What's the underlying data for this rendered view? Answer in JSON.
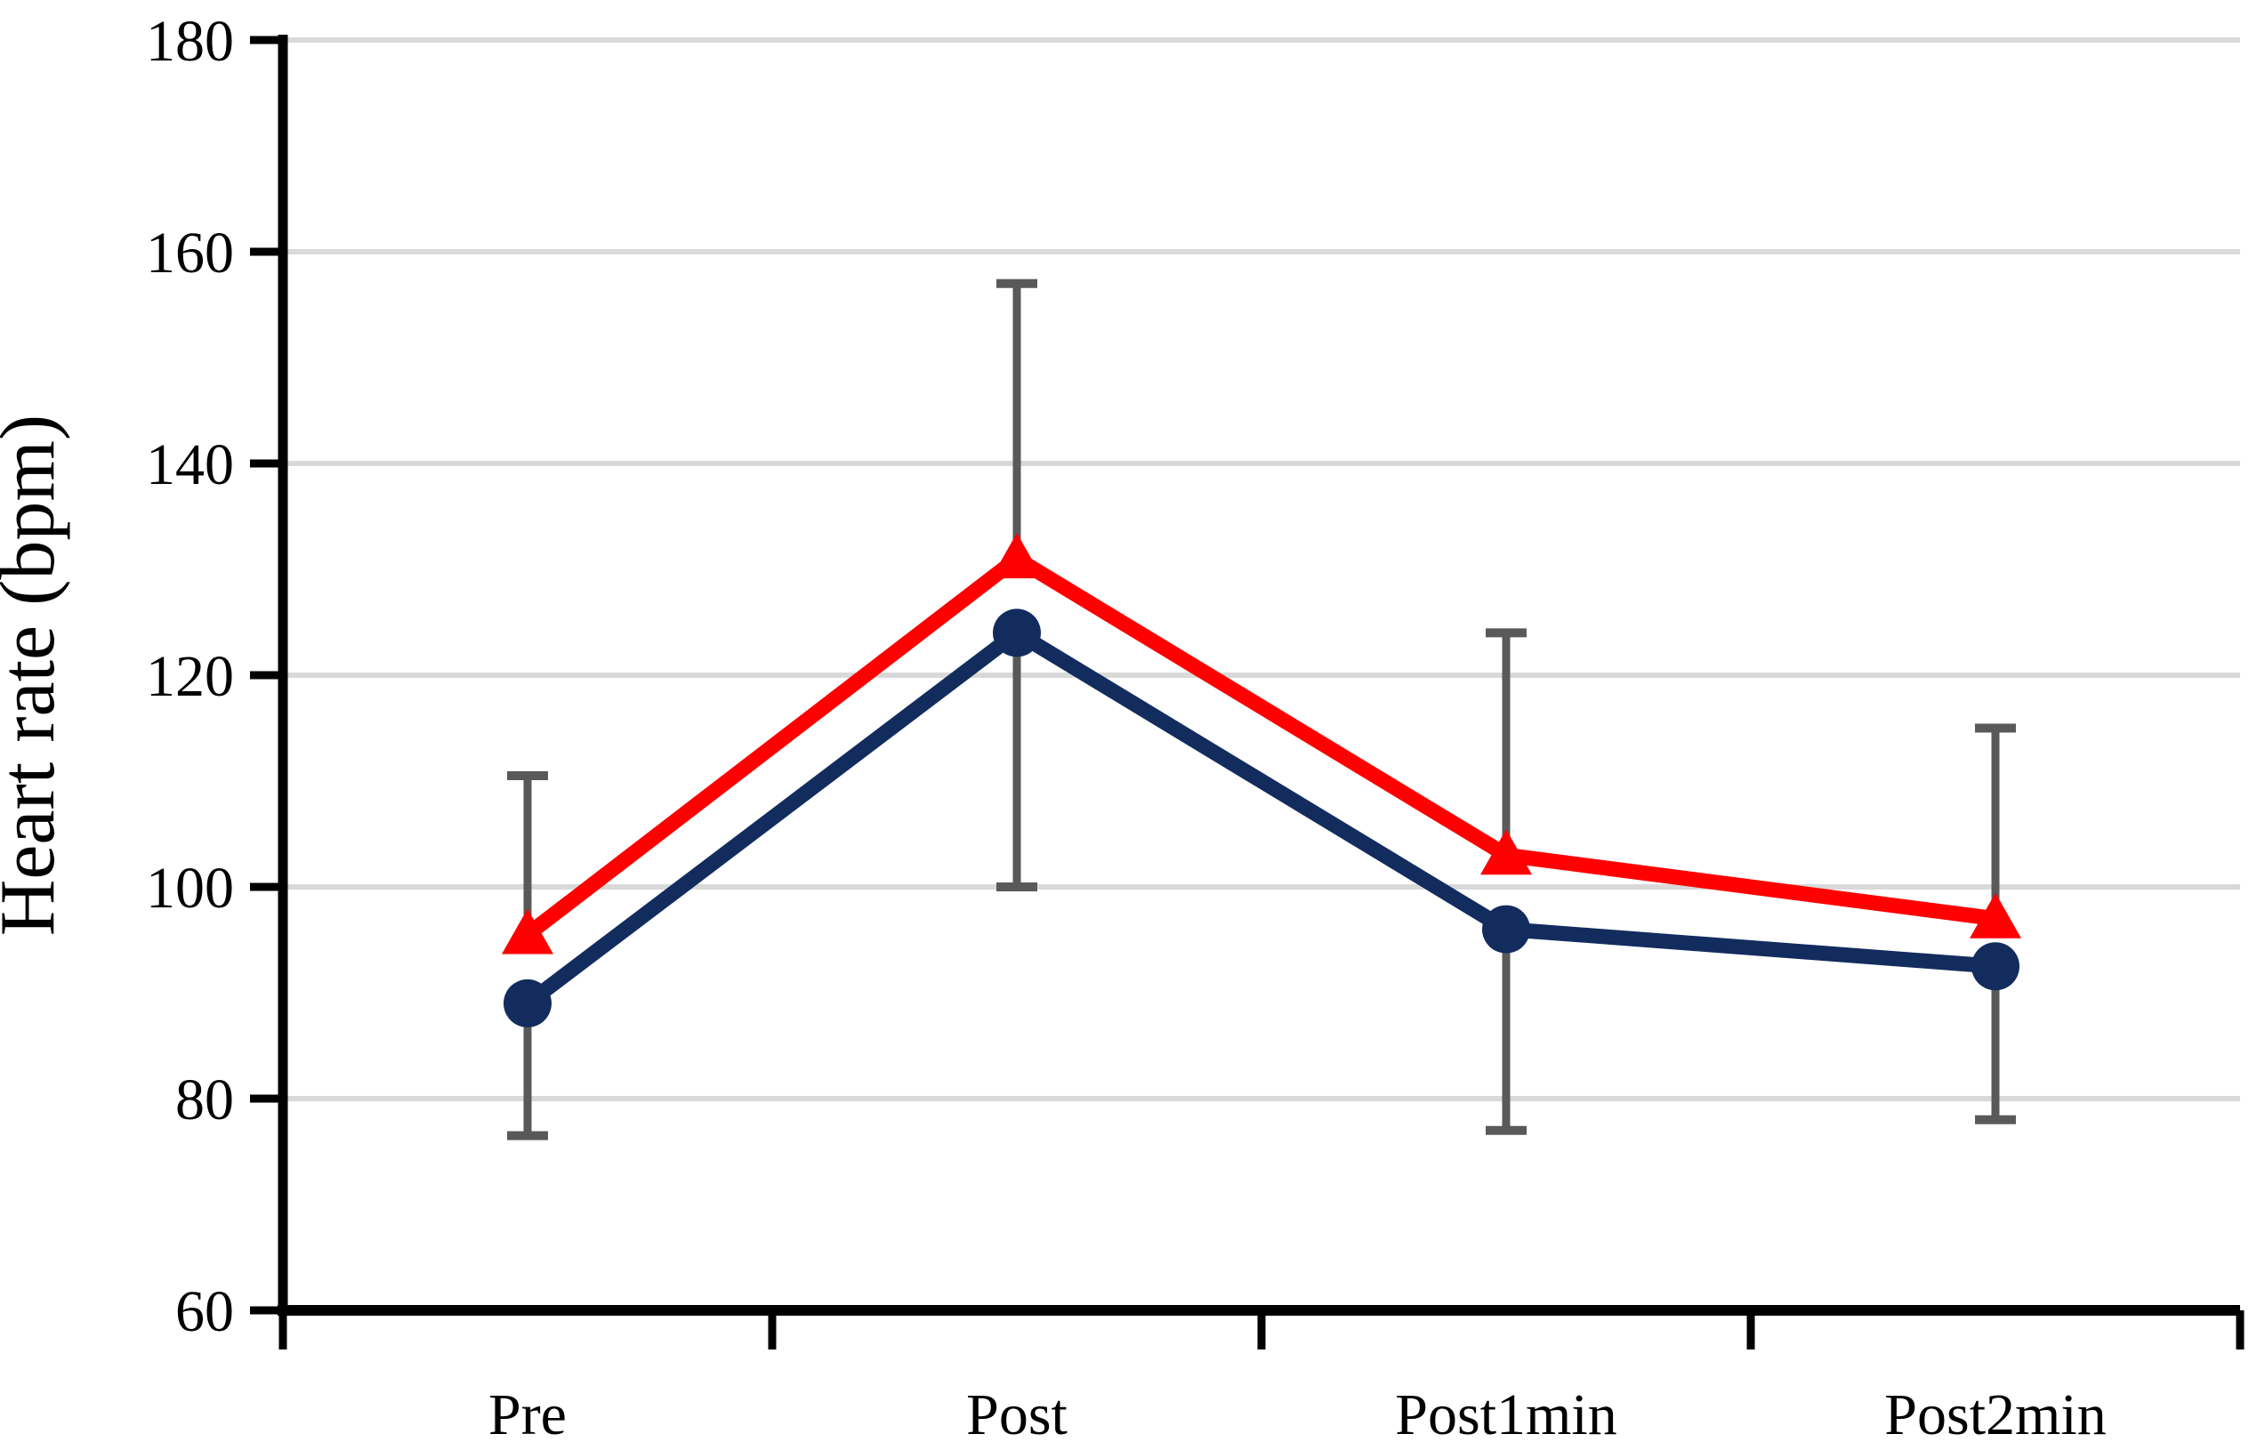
{
  "chart_data": {
    "type": "line",
    "title": "",
    "xlabel": "",
    "ylabel": "Heart rate (bpm)",
    "categories": [
      "Pre",
      "Post",
      "Post1min",
      "Post2min"
    ],
    "yticks": [
      180,
      160,
      140,
      120,
      100,
      80,
      60
    ],
    "ylim": [
      60,
      180
    ],
    "grid": true,
    "legend": "none",
    "series": [
      {
        "id": "red-triangle-series",
        "marker": "triangle",
        "color": "#FF0000",
        "values": [
          95.5,
          131,
          103,
          97
        ]
      },
      {
        "id": "navy-circle-series",
        "marker": "circle",
        "color": "#122C5E",
        "values": [
          89,
          124,
          96,
          92.5
        ]
      }
    ],
    "error_bars": {
      "color": "#595959",
      "upper_attached_to": "red-triangle-series",
      "upper_caps": [
        110.5,
        157,
        124,
        115
      ],
      "lower_attached_to": "navy-circle-series",
      "lower_caps": [
        76.5,
        100,
        77,
        78
      ]
    },
    "colors": {
      "gridline": "#D9D9D9",
      "axis": "#000000",
      "error_bar": "#595959",
      "series_red": "#FF0000",
      "series_navy": "#122C5E"
    }
  }
}
